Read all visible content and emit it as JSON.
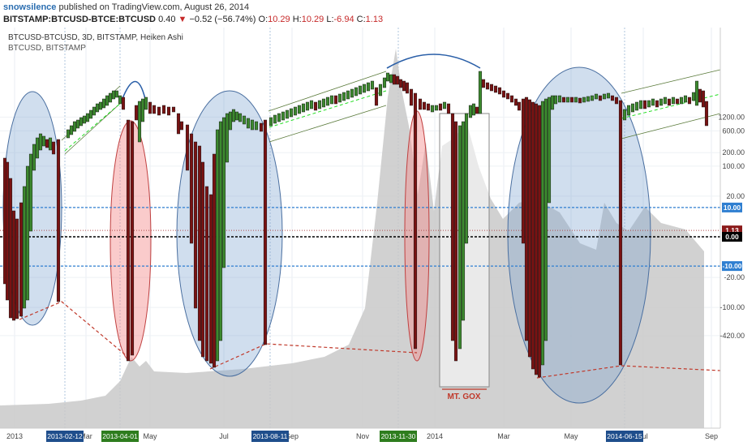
{
  "header": {
    "author": "snowsilence",
    "published": "published on TradingView.com, August 26, 2014",
    "symbol": "BITSTAMP:BTCUSD-BTCE:BTCUSD",
    "last": "0.40",
    "change_arrow": "▼",
    "change": "−0.52 (−56.74%)",
    "o_label": "O:",
    "o_value": "10.29",
    "h_label": "H:",
    "h_value": "10.29",
    "l_label": "L:",
    "l_value": "-6.94",
    "c_label": "C:",
    "c_value": "1.13"
  },
  "chart_data": {
    "type": "candlestick",
    "title": "BTCUSD-BTCUSD, 3D, BITSTAMP, Heiken Ashi",
    "subtitle": "BTCUSD, BITSTAMP",
    "y_scale": "symmetric-log",
    "y_ticks": [
      "1200.00",
      "600.00",
      "200.00",
      "100.00",
      "20.00",
      "10.00",
      "0.00",
      "-10.00",
      "-20.00",
      "-100.00",
      "-420.00"
    ],
    "y_price_labels": [
      {
        "text": "10.00",
        "value": 10,
        "color": "#2f7fd1"
      },
      {
        "text": "1.13",
        "value": 1.13,
        "color": "#8b1a1a"
      },
      {
        "text": "0.00",
        "value": 0,
        "color": "#000000"
      },
      {
        "text": "-10.00",
        "value": -10,
        "color": "#2f7fd1"
      }
    ],
    "x_ticks": [
      "2013",
      "Mar",
      "May",
      "Jul",
      "Sep",
      "Nov",
      "2014",
      "Mar",
      "May",
      "Jul",
      "Sep"
    ],
    "x_marked_dates": [
      "2013-02-12",
      "2013-04-01",
      "2013-08-11",
      "2013-11-30",
      "2014-06-15"
    ],
    "x_marked_colors": [
      "#1f4e8c",
      "#2e7d1e",
      "#1f4e8c",
      "#2e7d1e",
      "#1f4e8c"
    ],
    "horizontal_levels": [
      10,
      1.13,
      0,
      -10
    ],
    "annotations": [
      "MT. GOX"
    ],
    "series": [
      {
        "name": "BTCUSD-BTCE:BTCUSD spread (Heiken Ashi)",
        "colors": {
          "up": "#3c8a2e",
          "down": "#7a1212"
        }
      },
      {
        "name": "BTCUSD, BITSTAMP",
        "color": "#c8c8c8"
      }
    ]
  }
}
